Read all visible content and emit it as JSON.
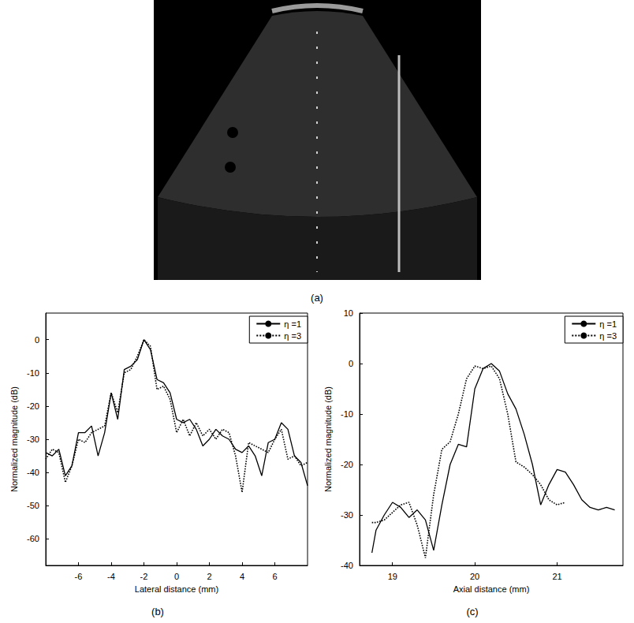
{
  "chart_data": [
    {
      "type": "image",
      "caption": "(a)"
    },
    {
      "type": "line",
      "caption": "(b)",
      "x_label": "Lateral distance (mm)",
      "y_label": "Normalized magnitude (dB)",
      "xlim": [
        -8,
        8
      ],
      "xticks": [
        -6,
        -4,
        -2,
        0,
        2,
        4,
        6
      ],
      "ylim": [
        -68,
        8
      ],
      "yticks": [
        -60,
        -50,
        -40,
        -30,
        -20,
        -10,
        0
      ],
      "grid": false,
      "legend": "upper right",
      "x": [
        -8,
        -7.6,
        -7.2,
        -6.8,
        -6.4,
        -6,
        -5.6,
        -5.2,
        -4.8,
        -4.4,
        -4,
        -3.6,
        -3.2,
        -2.8,
        -2.4,
        -2,
        -1.6,
        -1.2,
        -0.8,
        -0.4,
        0,
        0.4,
        0.8,
        1.2,
        1.6,
        2,
        2.4,
        2.8,
        3.2,
        3.6,
        4,
        4.4,
        4.8,
        5.2,
        5.6,
        6,
        6.4,
        6.8,
        7.2,
        7.6,
        8
      ],
      "series": [
        {
          "name": "η =1",
          "color": "#000000",
          "line_style": "solid",
          "values": [
            -34,
            -35,
            -33,
            -41,
            -38,
            -28,
            -28,
            -26,
            -35,
            -28,
            -16,
            -24,
            -9,
            -8,
            -6,
            0,
            -3,
            -12,
            -13,
            -16,
            -24,
            -25,
            -24,
            -27,
            -32,
            -30,
            -27,
            -29,
            -30,
            -33,
            -34,
            -32,
            -35,
            -41,
            -31,
            -30,
            -25,
            -27,
            -35,
            -37,
            -44
          ]
        },
        {
          "name": "η =3",
          "color": "#000000",
          "line_style": "dotted",
          "values": [
            -36,
            -33,
            -34,
            -43,
            -38,
            -30,
            -31,
            -28,
            -27,
            -26,
            -16,
            -22,
            -10,
            -9,
            -5,
            0,
            -2,
            -15,
            -14,
            -18,
            -28,
            -24,
            -29,
            -25,
            -29,
            -27,
            -30,
            -27,
            -28,
            -35,
            -46,
            -31,
            -32,
            -33,
            -34,
            -30,
            -27,
            -36,
            -35,
            -38,
            -37
          ]
        }
      ]
    },
    {
      "type": "line",
      "caption": "(c)",
      "x_label": "Axial distance (mm)",
      "y_label": "Normalized magnitude (dB)",
      "xlim": [
        18.6,
        21.8
      ],
      "xticks": [
        19,
        20,
        21
      ],
      "ylim": [
        -40,
        10
      ],
      "yticks": [
        -40,
        -30,
        -20,
        -10,
        0,
        10
      ],
      "grid": false,
      "legend": "upper right",
      "x": [
        18.75,
        18.8,
        18.9,
        19.0,
        19.1,
        19.2,
        19.3,
        19.4,
        19.5,
        19.6,
        19.7,
        19.8,
        19.9,
        20.0,
        20.1,
        20.2,
        20.3,
        20.4,
        20.5,
        20.6,
        20.7,
        20.8,
        20.9,
        21.0,
        21.1,
        21.2,
        21.3,
        21.4,
        21.5,
        21.6,
        21.7
      ],
      "series": [
        {
          "name": "η =1",
          "color": "#000000",
          "line_style": "solid",
          "values": [
            -37.5,
            -33,
            -30,
            -27.5,
            -28.5,
            -30.5,
            -29,
            -31,
            -37,
            -28,
            -20,
            -16,
            -16.5,
            -5,
            -1,
            0,
            -1.5,
            -6,
            -9,
            -14,
            -20,
            -28,
            -24,
            -21,
            -21.5,
            -24,
            -27,
            -28.5,
            -29,
            -28.5,
            -29
          ]
        },
        {
          "name": "η =3",
          "color": "#000000",
          "line_style": "dotted",
          "values": [
            -31.5,
            -31.5,
            -31,
            -29.5,
            -28,
            -27.5,
            -32,
            -38.5,
            -26,
            -17,
            -15.5,
            -10,
            -3,
            -0.5,
            -1,
            -0.5,
            -3,
            -10,
            -19.5,
            -20.5,
            -22,
            -24,
            -27,
            -28,
            -27.5,
            null,
            null,
            null,
            null,
            null,
            null
          ]
        }
      ]
    }
  ]
}
